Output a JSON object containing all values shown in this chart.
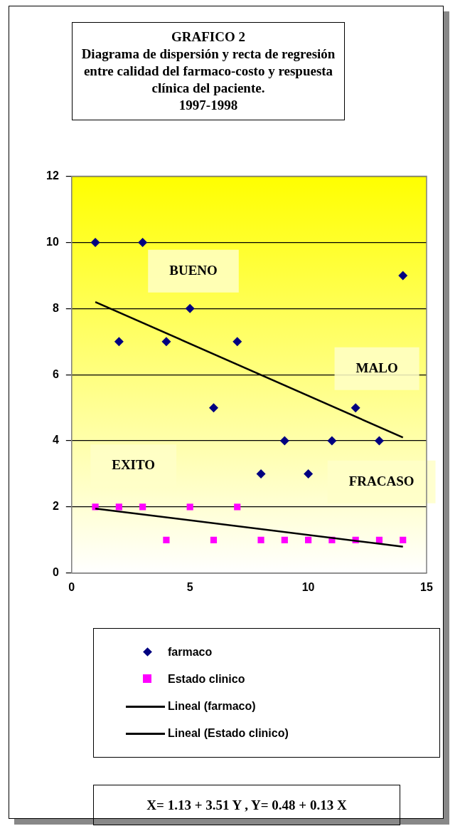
{
  "chart_data": {
    "type": "scatter",
    "title": "GRAFICO 2\nDiagrama de dispersión y recta de regresión entre calidad del farmaco-costo y respuesta clínica del paciente.\n1997-1998",
    "xlim": [
      0,
      15
    ],
    "xticks": [
      0,
      5,
      10,
      15
    ],
    "ylim": [
      0,
      12
    ],
    "yticks": [
      0,
      2,
      4,
      6,
      8,
      10,
      12
    ],
    "grid": "y",
    "legend": "bottom",
    "series": [
      {
        "name": "farmaco",
        "type": "scatter",
        "marker": "diamond",
        "color": "#000080",
        "x": [
          1,
          2,
          3,
          4,
          5,
          6,
          7,
          8,
          9,
          10,
          11,
          12,
          13,
          14
        ],
        "values": [
          10,
          7,
          10,
          7,
          8,
          5,
          7,
          3,
          4,
          3,
          4,
          5,
          4,
          9
        ]
      },
      {
        "name": "Estado clinico",
        "type": "scatter",
        "marker": "square",
        "color": "#ff00ff",
        "x": [
          1,
          2,
          3,
          4,
          5,
          6,
          7,
          8,
          9,
          10,
          11,
          12,
          13,
          14
        ],
        "values": [
          2,
          2,
          2,
          1,
          2,
          1,
          2,
          1,
          1,
          1,
          1,
          1,
          1,
          1
        ]
      },
      {
        "name": "Lineal (farmaco)",
        "type": "line",
        "marker": "none",
        "color": "#000000",
        "x": [
          1,
          14
        ],
        "values": [
          8.2,
          4.1
        ]
      },
      {
        "name": "Lineal (Estado clinico)",
        "type": "line",
        "marker": "none",
        "color": "#000000",
        "x": [
          1,
          14
        ],
        "values": [
          1.95,
          0.8
        ]
      }
    ],
    "annotations": [
      "BUENO",
      "MALO",
      "EXITO",
      "FRACASO",
      "X= 1.13 + 3.51 Y , Y= 0.48 + 0.13 X"
    ]
  }
}
